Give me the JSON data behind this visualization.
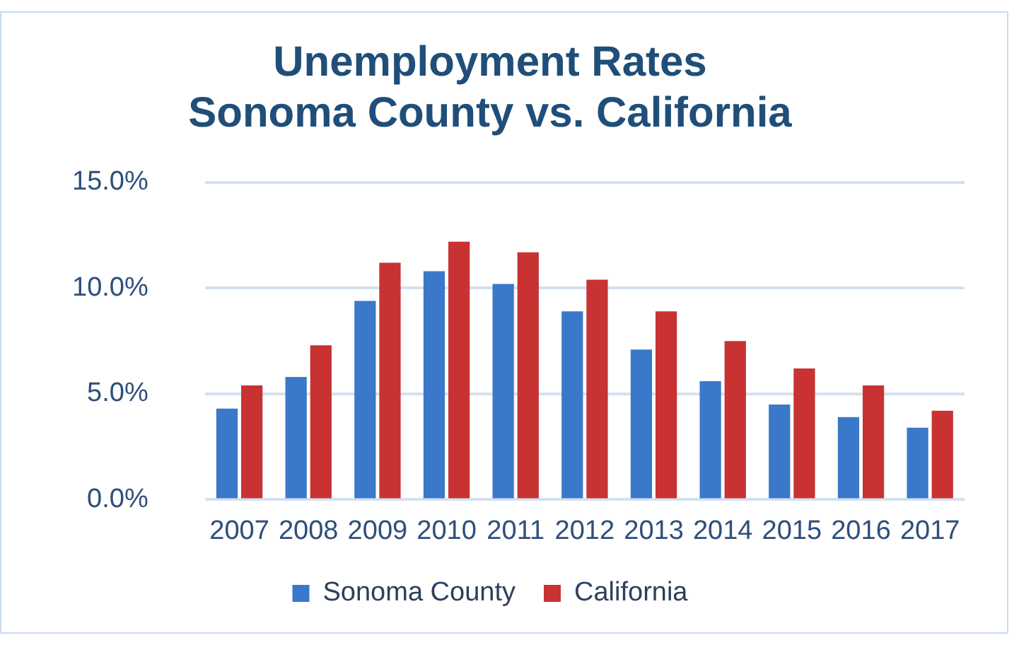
{
  "chart_data": {
    "type": "bar",
    "title": "Unemployment Rates\nSonoma County vs. California",
    "categories": [
      "2007",
      "2008",
      "2009",
      "2010",
      "2011",
      "2012",
      "2013",
      "2014",
      "2015",
      "2016",
      "2017"
    ],
    "series": [
      {
        "name": "Sonoma County",
        "color": "#3a78c9",
        "values": [
          4.3,
          5.8,
          9.4,
          10.8,
          10.2,
          8.9,
          7.1,
          5.6,
          4.5,
          3.9,
          3.4
        ]
      },
      {
        "name": "California",
        "color": "#c83232",
        "values": [
          5.4,
          7.3,
          11.2,
          12.2,
          11.7,
          10.4,
          8.9,
          7.5,
          6.2,
          5.4,
          4.2
        ]
      }
    ],
    "ylim": [
      0,
      15
    ],
    "yticks": [
      {
        "value": 0,
        "label": "0.0%"
      },
      {
        "value": 5,
        "label": "5.0%"
      },
      {
        "value": 10,
        "label": "10.0%"
      },
      {
        "value": 15,
        "label": "15.0%"
      }
    ],
    "grid": "y",
    "legend": "bottom"
  }
}
